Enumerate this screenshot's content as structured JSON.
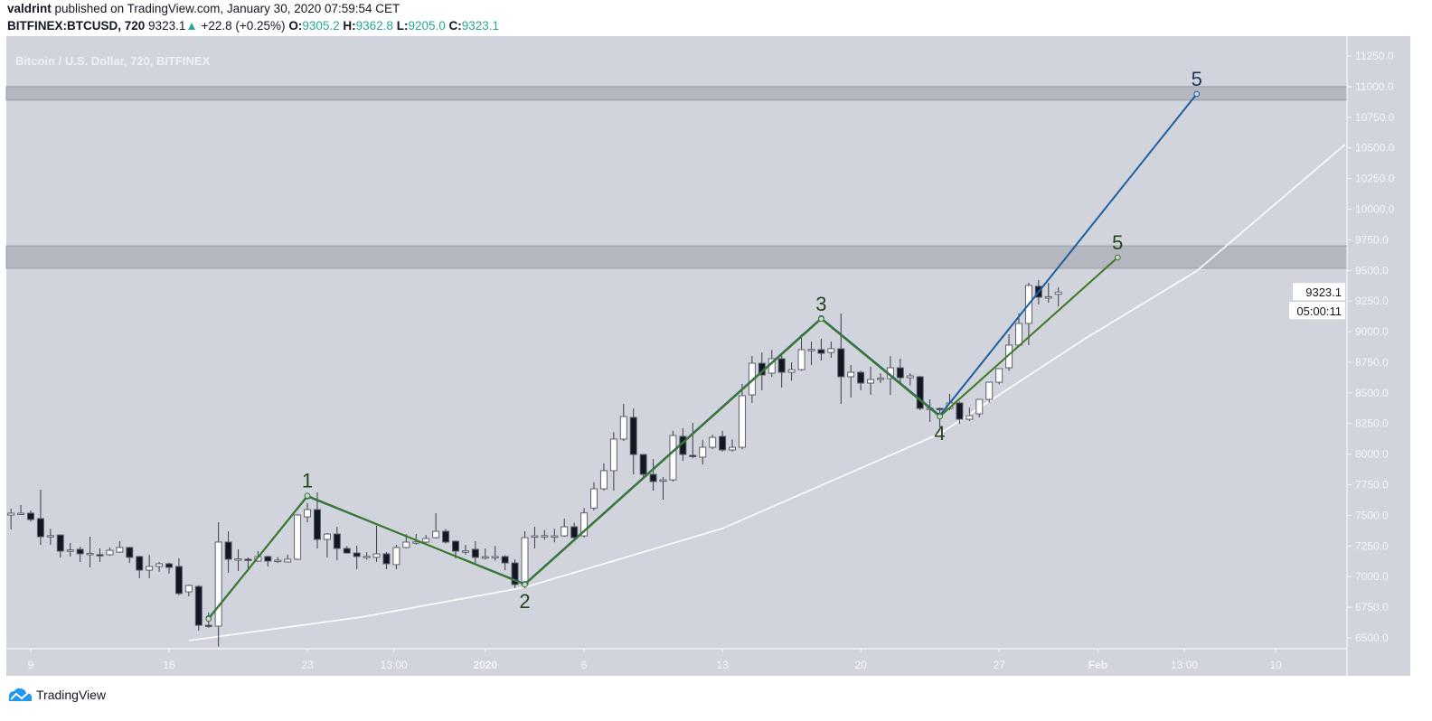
{
  "header": {
    "author": "valdrint",
    "published_text": "published on TradingView.com, January 30, 2020 07:59:54 CET",
    "symbol": "BITFINEX:BTCUSD, 720",
    "last": "9323.1",
    "change": "+22.8 (+0.25%)",
    "o_label": "O:",
    "o": "9305.2",
    "h_label": "H:",
    "h": "9362.8",
    "l_label": "L:",
    "l": "9205.0",
    "c_label": "C:",
    "c": "9323.1"
  },
  "colors": {
    "background": "#d1d4dc",
    "zone": "#b4b7bf",
    "up_body": "#ffffff",
    "down_body": "#131722",
    "green_count": "#3d7a24",
    "blue_count": "#1d5fa0",
    "curve": "#ffffff",
    "up_text": "#26a69a"
  },
  "chart_data": {
    "type": "candlestick",
    "title": "Bitcoin / U.S. Dollar, 720, BITFINEX",
    "interval": "720",
    "ylim": [
      6419,
      11412
    ],
    "xlim": [
      "2019-12-07T18:00",
      "2020-02-14T00:00"
    ],
    "grid": false,
    "y_ticks": [
      6500,
      6750,
      7000,
      7250,
      7500,
      7750,
      8000,
      8250,
      8500,
      8750,
      9000,
      9250,
      9500,
      9750,
      10000,
      10250,
      10500,
      10750,
      11000,
      11250
    ],
    "x_ticks": [
      {
        "label": "9",
        "t": "2019-12-09T00:00"
      },
      {
        "label": "16",
        "t": "2019-12-16T00:00"
      },
      {
        "label": "23",
        "t": "2019-12-23T00:00"
      },
      {
        "label": "13:00",
        "t": "2019-12-27T09:00"
      },
      {
        "label": "2020",
        "t": "2020-01-01T00:00"
      },
      {
        "label": "6",
        "t": "2020-01-06T00:00"
      },
      {
        "label": "13",
        "t": "2020-01-13T00:00"
      },
      {
        "label": "20",
        "t": "2020-01-20T00:00"
      },
      {
        "label": "27",
        "t": "2020-01-27T00:00"
      },
      {
        "label": "Feb",
        "t": "2020-02-01T00:00"
      },
      {
        "label": "13:00",
        "t": "2020-02-05T09:00"
      },
      {
        "label": "10",
        "t": "2020-02-10T00:00"
      }
    ],
    "last_price_label": "9323.1",
    "countdown_label": "05:00:11",
    "zones": [
      {
        "from": 9517,
        "to": 9700
      },
      {
        "from": 10890,
        "to": 11000
      }
    ],
    "candles_columns": [
      "t",
      "open",
      "high",
      "low",
      "close"
    ],
    "candles": [
      [
        "2019-12-08T00:00",
        7503,
        7555,
        7385,
        7518
      ],
      [
        "2019-12-08T12:00",
        7515,
        7585,
        7510,
        7518
      ],
      [
        "2019-12-09T00:00",
        7518,
        7540,
        7450,
        7466
      ],
      [
        "2019-12-09T12:00",
        7474,
        7710,
        7260,
        7326
      ],
      [
        "2019-12-10T00:00",
        7330,
        7390,
        7260,
        7335
      ],
      [
        "2019-12-10T12:00",
        7340,
        7345,
        7156,
        7208
      ],
      [
        "2019-12-11T00:00",
        7215,
        7275,
        7164,
        7218
      ],
      [
        "2019-12-11T12:00",
        7223,
        7245,
        7120,
        7186
      ],
      [
        "2019-12-12T00:00",
        7186,
        7326,
        7075,
        7190
      ],
      [
        "2019-12-12T12:00",
        7180,
        7230,
        7120,
        7179
      ],
      [
        "2019-12-13T00:00",
        7179,
        7238,
        7170,
        7215
      ],
      [
        "2019-12-13T12:00",
        7200,
        7290,
        7195,
        7238
      ],
      [
        "2019-12-14T00:00",
        7238,
        7245,
        7112,
        7157
      ],
      [
        "2019-12-14T12:00",
        7164,
        7170,
        6987,
        7053
      ],
      [
        "2019-12-15T00:00",
        7053,
        7180,
        6987,
        7083
      ],
      [
        "2019-12-15T12:00",
        7083,
        7120,
        7040,
        7105
      ],
      [
        "2019-12-16T00:00",
        7105,
        7115,
        7024,
        7075
      ],
      [
        "2019-12-16T12:00",
        7083,
        7150,
        6847,
        6862
      ],
      [
        "2019-12-17T00:00",
        6876,
        6935,
        6840,
        6928
      ],
      [
        "2019-12-17T12:00",
        6920,
        6930,
        6559,
        6603
      ],
      [
        "2019-12-18T00:00",
        6603,
        6706,
        6581,
        6600
      ],
      [
        "2019-12-18T12:00",
        6596,
        7444,
        6430,
        7282
      ],
      [
        "2019-12-19T00:00",
        7282,
        7370,
        7031,
        7142
      ],
      [
        "2019-12-19T12:00",
        7142,
        7223,
        7046,
        7145
      ],
      [
        "2019-12-20T00:00",
        7142,
        7157,
        7060,
        7140
      ],
      [
        "2019-12-20T12:00",
        7127,
        7208,
        7120,
        7164
      ],
      [
        "2019-12-21T00:00",
        7164,
        7170,
        7083,
        7127
      ],
      [
        "2019-12-21T12:00",
        7130,
        7160,
        7110,
        7134
      ],
      [
        "2019-12-22T00:00",
        7120,
        7180,
        7115,
        7142
      ],
      [
        "2019-12-22T12:00",
        7142,
        7510,
        7135,
        7503
      ],
      [
        "2019-12-23T00:00",
        7488,
        7600,
        7444,
        7547
      ],
      [
        "2019-12-23T12:00",
        7547,
        7688,
        7230,
        7304
      ],
      [
        "2019-12-24T00:00",
        7304,
        7355,
        7157,
        7348
      ],
      [
        "2019-12-24T12:00",
        7348,
        7407,
        7134,
        7230
      ],
      [
        "2019-12-25T00:00",
        7230,
        7250,
        7186,
        7193
      ],
      [
        "2019-12-25T12:00",
        7193,
        7252,
        7060,
        7164
      ],
      [
        "2019-12-26T00:00",
        7164,
        7200,
        7140,
        7166
      ],
      [
        "2019-12-26T12:00",
        7157,
        7415,
        7120,
        7186
      ],
      [
        "2019-12-27T00:00",
        7186,
        7200,
        7060,
        7105
      ],
      [
        "2019-12-27T12:00",
        7098,
        7260,
        7060,
        7238
      ],
      [
        "2019-12-28T00:00",
        7238,
        7348,
        7230,
        7282
      ],
      [
        "2019-12-28T12:00",
        7282,
        7348,
        7260,
        7284
      ],
      [
        "2019-12-29T00:00",
        7282,
        7340,
        7275,
        7311
      ],
      [
        "2019-12-29T12:00",
        7318,
        7518,
        7310,
        7370
      ],
      [
        "2019-12-30T00:00",
        7370,
        7390,
        7270,
        7282
      ],
      [
        "2019-12-30T12:00",
        7289,
        7295,
        7150,
        7208
      ],
      [
        "2019-12-31T00:00",
        7208,
        7260,
        7180,
        7210
      ],
      [
        "2019-12-31T12:00",
        7223,
        7289,
        7112,
        7157
      ],
      [
        "2020-01-01T00:00",
        7160,
        7230,
        7140,
        7162
      ],
      [
        "2020-01-01T12:00",
        7162,
        7250,
        7130,
        7164
      ],
      [
        "2020-01-02T00:00",
        7164,
        7175,
        7053,
        7112
      ],
      [
        "2020-01-02T12:00",
        7112,
        7142,
        6906,
        6935
      ],
      [
        "2020-01-03T00:00",
        6935,
        7370,
        6906,
        7318
      ],
      [
        "2020-01-03T12:00",
        7330,
        7407,
        7230,
        7333
      ],
      [
        "2020-01-04T00:00",
        7333,
        7380,
        7300,
        7335
      ],
      [
        "2020-01-04T12:00",
        7333,
        7390,
        7280,
        7333
      ],
      [
        "2020-01-05T00:00",
        7333,
        7474,
        7325,
        7407
      ],
      [
        "2020-01-05T12:00",
        7407,
        7440,
        7300,
        7318
      ],
      [
        "2020-01-06T00:00",
        7333,
        7560,
        7320,
        7520
      ],
      [
        "2020-01-06T12:00",
        7560,
        7770,
        7540,
        7717
      ],
      [
        "2020-01-07T00:00",
        7717,
        7924,
        7702,
        7865
      ],
      [
        "2020-01-07T12:00",
        7865,
        8180,
        7702,
        8123
      ],
      [
        "2020-01-08T00:00",
        8123,
        8410,
        8108,
        8307
      ],
      [
        "2020-01-08T12:00",
        8300,
        8373,
        7835,
        7997
      ],
      [
        "2020-01-09T00:00",
        7997,
        8000,
        7813,
        7835
      ],
      [
        "2020-01-09T12:00",
        7835,
        7960,
        7702,
        7776
      ],
      [
        "2020-01-10T00:00",
        7783,
        7813,
        7628,
        7790
      ],
      [
        "2020-01-10T12:00",
        7790,
        8190,
        7776,
        8152
      ],
      [
        "2020-01-11T00:00",
        8145,
        8211,
        7946,
        7997
      ],
      [
        "2020-01-11T12:00",
        7990,
        8255,
        7968,
        7983
      ],
      [
        "2020-01-12T00:00",
        7975,
        8115,
        7916,
        8056
      ],
      [
        "2020-01-12T12:00",
        8056,
        8160,
        8040,
        8137
      ],
      [
        "2020-01-13T00:00",
        8145,
        8190,
        8020,
        8034
      ],
      [
        "2020-01-13T12:00",
        8034,
        8120,
        8020,
        8056
      ],
      [
        "2020-01-14T00:00",
        8056,
        8573,
        8040,
        8477
      ],
      [
        "2020-01-14T12:00",
        8484,
        8801,
        8418,
        8742
      ],
      [
        "2020-01-15T00:00",
        8742,
        8830,
        8521,
        8646
      ],
      [
        "2020-01-15T12:00",
        8661,
        8850,
        8630,
        8779
      ],
      [
        "2020-01-16T00:00",
        8779,
        8808,
        8543,
        8668
      ],
      [
        "2020-01-16T12:00",
        8668,
        8750,
        8600,
        8690
      ],
      [
        "2020-01-17T00:00",
        8690,
        8978,
        8680,
        8853
      ],
      [
        "2020-01-17T12:00",
        8853,
        8919,
        8727,
        8855
      ],
      [
        "2020-01-18T00:00",
        8853,
        8941,
        8764,
        8823
      ],
      [
        "2020-01-18T12:00",
        8830,
        8919,
        8786,
        8860
      ],
      [
        "2020-01-19T00:00",
        8860,
        9148,
        8410,
        8632
      ],
      [
        "2020-01-19T12:00",
        8632,
        8727,
        8462,
        8668
      ],
      [
        "2020-01-20T00:00",
        8668,
        8680,
        8520,
        8580
      ],
      [
        "2020-01-20T12:00",
        8580,
        8712,
        8484,
        8609
      ],
      [
        "2020-01-21T00:00",
        8617,
        8660,
        8580,
        8620
      ],
      [
        "2020-01-21T12:00",
        8617,
        8800,
        8484,
        8705
      ],
      [
        "2020-01-22T00:00",
        8705,
        8779,
        8580,
        8624
      ],
      [
        "2020-01-22T12:00",
        8624,
        8660,
        8560,
        8639
      ],
      [
        "2020-01-23T00:00",
        8632,
        8640,
        8358,
        8373
      ],
      [
        "2020-01-23T12:00",
        8373,
        8447,
        8263,
        8375
      ],
      [
        "2020-01-24T00:00",
        8373,
        8380,
        8219,
        8370
      ],
      [
        "2020-01-24T12:00",
        8373,
        8491,
        8360,
        8418
      ],
      [
        "2020-01-25T00:00",
        8418,
        8430,
        8248,
        8285
      ],
      [
        "2020-01-25T12:00",
        8285,
        8380,
        8270,
        8314
      ],
      [
        "2020-01-26T00:00",
        8329,
        8450,
        8300,
        8447
      ],
      [
        "2020-01-26T12:00",
        8447,
        8590,
        8420,
        8587
      ],
      [
        "2020-01-27T00:00",
        8587,
        8700,
        8570,
        8698
      ],
      [
        "2020-01-27T12:00",
        8705,
        8978,
        8680,
        8890
      ],
      [
        "2020-01-28T00:00",
        8890,
        9150,
        8880,
        9067
      ],
      [
        "2020-01-28T12:00",
        9067,
        9399,
        8890,
        9377
      ],
      [
        "2020-01-29T00:00",
        9370,
        9421,
        9222,
        9281
      ],
      [
        "2020-01-29T12:00",
        9281,
        9399,
        9237,
        9285
      ],
      [
        "2020-01-30T00:00",
        9305.2,
        9362.8,
        9205.0,
        9323.1
      ]
    ],
    "wave_count_green": [
      {
        "label": "",
        "t": "2019-12-18T00:00",
        "p": 6655
      },
      {
        "label": "1",
        "t": "2019-12-23T00:00",
        "p": 7660
      },
      {
        "label": "2",
        "t": "2020-01-03T00:00",
        "p": 6935
      },
      {
        "label": "3",
        "t": "2020-01-18T00:00",
        "p": 9104
      },
      {
        "label": "4",
        "t": "2020-01-24T00:00",
        "p": 8307
      },
      {
        "label": "5",
        "t": "2020-02-02T00:00",
        "p": 9605
      }
    ],
    "wave_count_blue": [
      {
        "label": "",
        "t": "2019-12-18T00:00",
        "p": 6660
      },
      {
        "label": "",
        "t": "2019-12-23T00:00",
        "p": 7655
      },
      {
        "label": "",
        "t": "2020-01-03T00:00",
        "p": 6940
      },
      {
        "label": "",
        "t": "2020-01-18T00:00",
        "p": 9110
      },
      {
        "label": "",
        "t": "2020-01-24T00:00",
        "p": 8315
      },
      {
        "label": "5",
        "t": "2020-02-06T00:00",
        "p": 10940
      }
    ],
    "support_curve": [
      [
        "2019-12-17T00:00",
        6478
      ],
      [
        "2019-12-25T18:00",
        6670
      ],
      [
        "2020-01-03T00:00",
        6913
      ],
      [
        "2020-01-13T00:00",
        7393
      ],
      [
        "2020-01-24T00:00",
        8167
      ],
      [
        "2020-01-31T08:00",
        8941
      ],
      [
        "2020-02-06T00:00",
        9495
      ],
      [
        "2020-02-13T12:00",
        10527
      ]
    ]
  },
  "footer": {
    "brand": "TradingView",
    "logo_icon": "tradingview-cloud-icon"
  }
}
